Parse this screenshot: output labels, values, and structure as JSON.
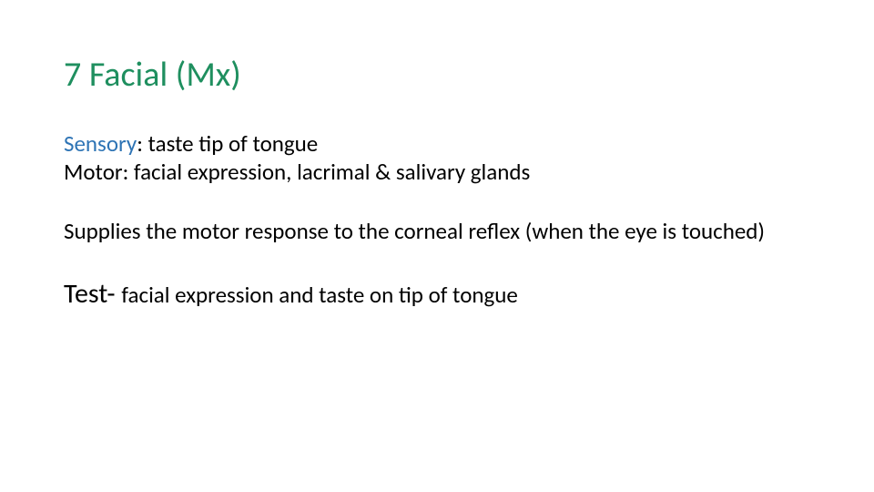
{
  "title": "7 Facial (Mx)",
  "colors": {
    "title": "#1f8f5f",
    "sensory_label": "#2e74b5",
    "body_text": "#000000",
    "background": "#ffffff"
  },
  "typography": {
    "title_fontsize_pt": 28,
    "body_fontsize_pt": 18,
    "test_label_fontsize_pt": 22,
    "font_family": "Calibri"
  },
  "lines": {
    "sensory_label": "Sensory",
    "sensory_rest": ": taste tip of tongue",
    "motor_label": "Motor",
    "motor_rest": ": facial expression, lacrimal & salivary glands",
    "supplies": "Supplies the motor response to the corneal reflex (when the eye is touched)",
    "test_label": "Test- ",
    "test_rest": "facial expression and taste on tip of tongue"
  }
}
